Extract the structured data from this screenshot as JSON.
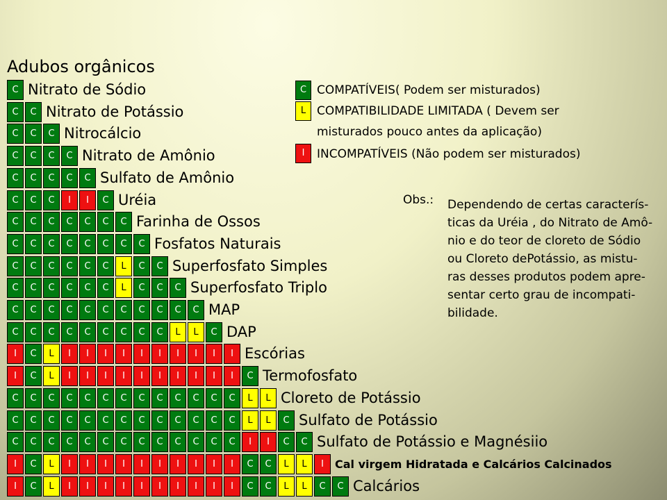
{
  "title": "Adubos orgânicos",
  "products": [
    {
      "name": "Nitrato de Sódio",
      "cells": [
        "C"
      ]
    },
    {
      "name": "Nitrato de Potássio",
      "cells": [
        "C",
        "C"
      ]
    },
    {
      "name": "Nitrocálcio",
      "cells": [
        "C",
        "C",
        "C"
      ]
    },
    {
      "name": "Nitrato de Amônio",
      "cells": [
        "C",
        "C",
        "C",
        "C"
      ]
    },
    {
      "name": "Sulfato de Amônio",
      "cells": [
        "C",
        "C",
        "C",
        "C",
        "C"
      ]
    },
    {
      "name": "Uréia",
      "cells": [
        "C",
        "C",
        "C",
        "I",
        "I",
        "C"
      ]
    },
    {
      "name": "Farinha de Ossos",
      "cells": [
        "C",
        "C",
        "C",
        "C",
        "C",
        "C",
        "C"
      ]
    },
    {
      "name": "Fosfatos Naturais",
      "cells": [
        "C",
        "C",
        "C",
        "C",
        "C",
        "C",
        "C",
        "C"
      ]
    },
    {
      "name": "Superfosfato Simples",
      "cells": [
        "C",
        "C",
        "C",
        "C",
        "C",
        "C",
        "L",
        "C",
        "C"
      ]
    },
    {
      "name": "Superfosfato Triplo",
      "cells": [
        "C",
        "C",
        "C",
        "C",
        "C",
        "C",
        "L",
        "C",
        "C",
        "C"
      ]
    },
    {
      "name": "MAP",
      "cells": [
        "C",
        "C",
        "C",
        "C",
        "C",
        "C",
        "C",
        "C",
        "C",
        "C",
        "C"
      ]
    },
    {
      "name": "DAP",
      "cells": [
        "C",
        "C",
        "C",
        "C",
        "C",
        "C",
        "C",
        "C",
        "C",
        "L",
        "L",
        "C"
      ]
    },
    {
      "name": "Escórias",
      "cells": [
        "I",
        "C",
        "L",
        "I",
        "I",
        "I",
        "I",
        "I",
        "I",
        "I",
        "I",
        "I",
        "I"
      ]
    },
    {
      "name": "Termofosfato",
      "cells": [
        "I",
        "C",
        "L",
        "I",
        "I",
        "I",
        "I",
        "I",
        "I",
        "I",
        "I",
        "I",
        "I",
        "C"
      ]
    },
    {
      "name": "Cloreto de Potássio",
      "cells": [
        "C",
        "C",
        "C",
        "C",
        "C",
        "C",
        "C",
        "C",
        "C",
        "C",
        "C",
        "C",
        "C",
        "L",
        "L"
      ]
    },
    {
      "name": "Sulfato de Potássio",
      "cells": [
        "C",
        "C",
        "C",
        "C",
        "C",
        "C",
        "C",
        "C",
        "C",
        "C",
        "C",
        "C",
        "C",
        "L",
        "L",
        "C"
      ]
    },
    {
      "name": "Sulfato de Potássio e Magnésiio",
      "cells": [
        "C",
        "C",
        "C",
        "C",
        "C",
        "C",
        "C",
        "C",
        "C",
        "C",
        "C",
        "C",
        "C",
        "I",
        "I",
        "C",
        "C"
      ]
    },
    {
      "name": "Cal virgem Hidratada e Calcários Calcinados",
      "small": true,
      "cells": [
        "I",
        "C",
        "L",
        "I",
        "I",
        "I",
        "I",
        "I",
        "I",
        "I",
        "I",
        "I",
        "I",
        "C",
        "C",
        "L",
        "L",
        "I"
      ]
    },
    {
      "name": "Calcários",
      "cells": [
        "I",
        "C",
        "L",
        "I",
        "I",
        "I",
        "I",
        "I",
        "I",
        "I",
        "I",
        "I",
        "I",
        "C",
        "C",
        "L",
        "L",
        "C",
        "C"
      ]
    }
  ],
  "legend": [
    {
      "code": "C",
      "text": "COMPATÍVEIS( Podem ser misturados)"
    },
    {
      "code": "L",
      "text": "COMPATIBILIDADE LIMITADA ( Devem ser"
    },
    {
      "code": "",
      "text": "misturados pouco antes da aplicação)"
    },
    {
      "code": "I",
      "text": "INCOMPATÍVEIS (Não podem ser misturados)"
    }
  ],
  "obs_label": "Obs.:",
  "obs_lines": [
    "Dependendo de certas caracterís-",
    "ticas da Uréia , do Nitrato de Amô-",
    "nio e do teor de cloreto de Sódio",
    "ou Cloreto dePotássio, as mistu-",
    "ras desses produtos podem apre-",
    "sentar certo grau de incompati-",
    "bilidade."
  ],
  "colors": {
    "compatible": "#007b10",
    "limited": "#ffff00",
    "incompatible": "#ee1111"
  }
}
